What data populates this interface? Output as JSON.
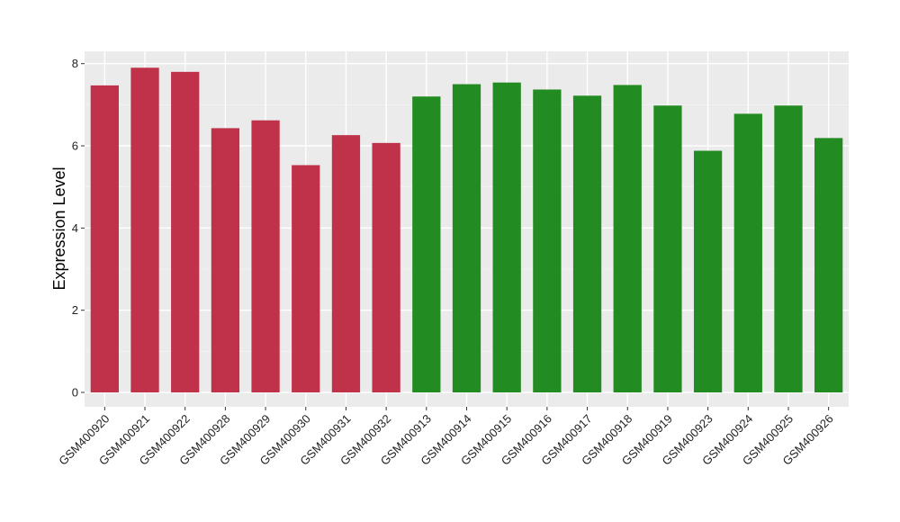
{
  "chart_data": {
    "type": "bar",
    "title": "",
    "xlabel": "",
    "ylabel": "Expression Level",
    "ylim": [
      -0.35,
      8.3
    ],
    "yticks": [
      0,
      2,
      4,
      6,
      8
    ],
    "grid": true,
    "background": "#ebebeb",
    "categories": [
      "GSM400920",
      "GSM400921",
      "GSM400922",
      "GSM400928",
      "GSM400929",
      "GSM400930",
      "GSM400931",
      "GSM400932",
      "GSM400913",
      "GSM400914",
      "GSM400915",
      "GSM400916",
      "GSM400917",
      "GSM400918",
      "GSM400919",
      "GSM400923",
      "GSM400924",
      "GSM400925",
      "GSM400926"
    ],
    "values": [
      7.47,
      7.9,
      7.8,
      6.43,
      6.62,
      5.53,
      6.26,
      6.07,
      7.2,
      7.5,
      7.54,
      7.37,
      7.22,
      7.48,
      6.98,
      5.88,
      6.78,
      6.98,
      6.19
    ],
    "bar_colors": [
      "#c0314a",
      "#c0314a",
      "#c0314a",
      "#c0314a",
      "#c0314a",
      "#c0314a",
      "#c0314a",
      "#c0314a",
      "#228b22",
      "#228b22",
      "#228b22",
      "#228b22",
      "#228b22",
      "#228b22",
      "#228b22",
      "#228b22",
      "#228b22",
      "#228b22",
      "#228b22"
    ]
  }
}
